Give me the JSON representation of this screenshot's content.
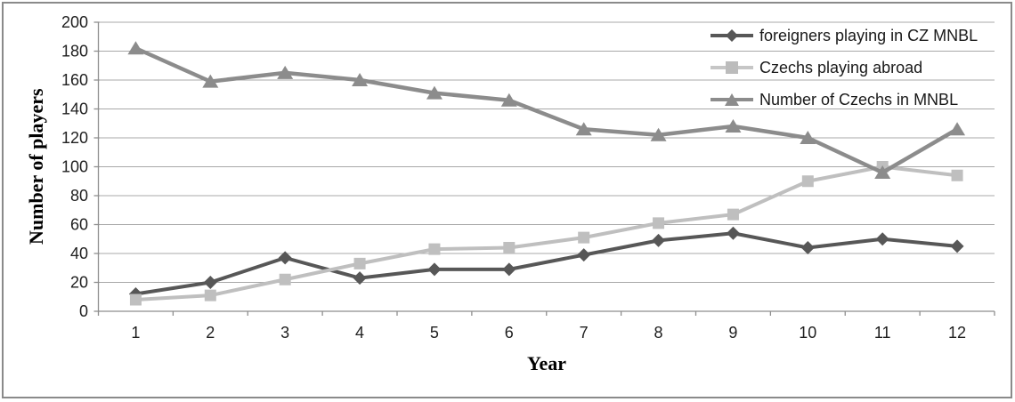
{
  "chart": {
    "background": "#ffffff",
    "border_color": "#8a8a8a",
    "axis_color": "#8e8e8e",
    "gridline_color": "#a8a8a8",
    "tick_label_color": "#1f1f1f"
  },
  "chart_data": {
    "type": "line",
    "title": "",
    "xlabel": "Year",
    "ylabel": "Number of players",
    "x": [
      1,
      2,
      3,
      4,
      5,
      6,
      7,
      8,
      9,
      10,
      11,
      12
    ],
    "xticklabels": [
      "1",
      "2",
      "3",
      "4",
      "5",
      "6",
      "7",
      "8",
      "9",
      "10",
      "11",
      "12"
    ],
    "yticks": [
      0,
      20,
      40,
      60,
      80,
      100,
      120,
      140,
      160,
      180,
      200
    ],
    "ylim": [
      0,
      200
    ],
    "grid": true,
    "legend_position": "top-right-inside",
    "series": [
      {
        "name": "foreigners playing in CZ MNBL",
        "marker": "diamond",
        "color": "#575757",
        "values": [
          12,
          20,
          37,
          23,
          29,
          29,
          39,
          49,
          54,
          44,
          50,
          45
        ]
      },
      {
        "name": "Czechs playing abroad",
        "marker": "square",
        "color": "#bfbfbf",
        "values": [
          8,
          11,
          22,
          33,
          43,
          44,
          51,
          61,
          67,
          90,
          100,
          94
        ]
      },
      {
        "name": "Number of Czechs in MNBL",
        "marker": "triangle",
        "color": "#8c8c8c",
        "values": [
          182,
          159,
          165,
          160,
          151,
          146,
          126,
          122,
          128,
          120,
          96,
          126
        ]
      }
    ]
  }
}
